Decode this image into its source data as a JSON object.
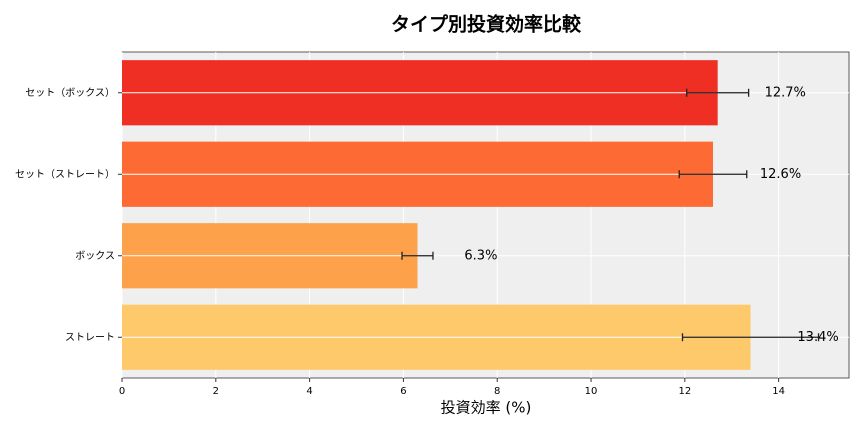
{
  "chart_data": {
    "type": "barh",
    "title": "タイプ別投資効率比較",
    "xlabel": "投資効率 (%)",
    "categories": [
      "セット（ボックス）",
      "セット（ストレート）",
      "ボックス",
      "ストレート"
    ],
    "values": [
      12.7,
      12.6,
      6.3,
      13.4
    ],
    "errors": [
      0.66,
      0.72,
      0.33,
      1.45
    ],
    "value_labels": [
      "12.7%",
      "12.6%",
      "6.3%",
      "13.4%"
    ],
    "colors": [
      "#ef2e24",
      "#fd6a34",
      "#fda14a",
      "#fdc96b"
    ],
    "xlim": [
      0,
      15.5
    ],
    "xticks": [
      0,
      2,
      4,
      6,
      8,
      10,
      12,
      14
    ],
    "grid": true
  }
}
